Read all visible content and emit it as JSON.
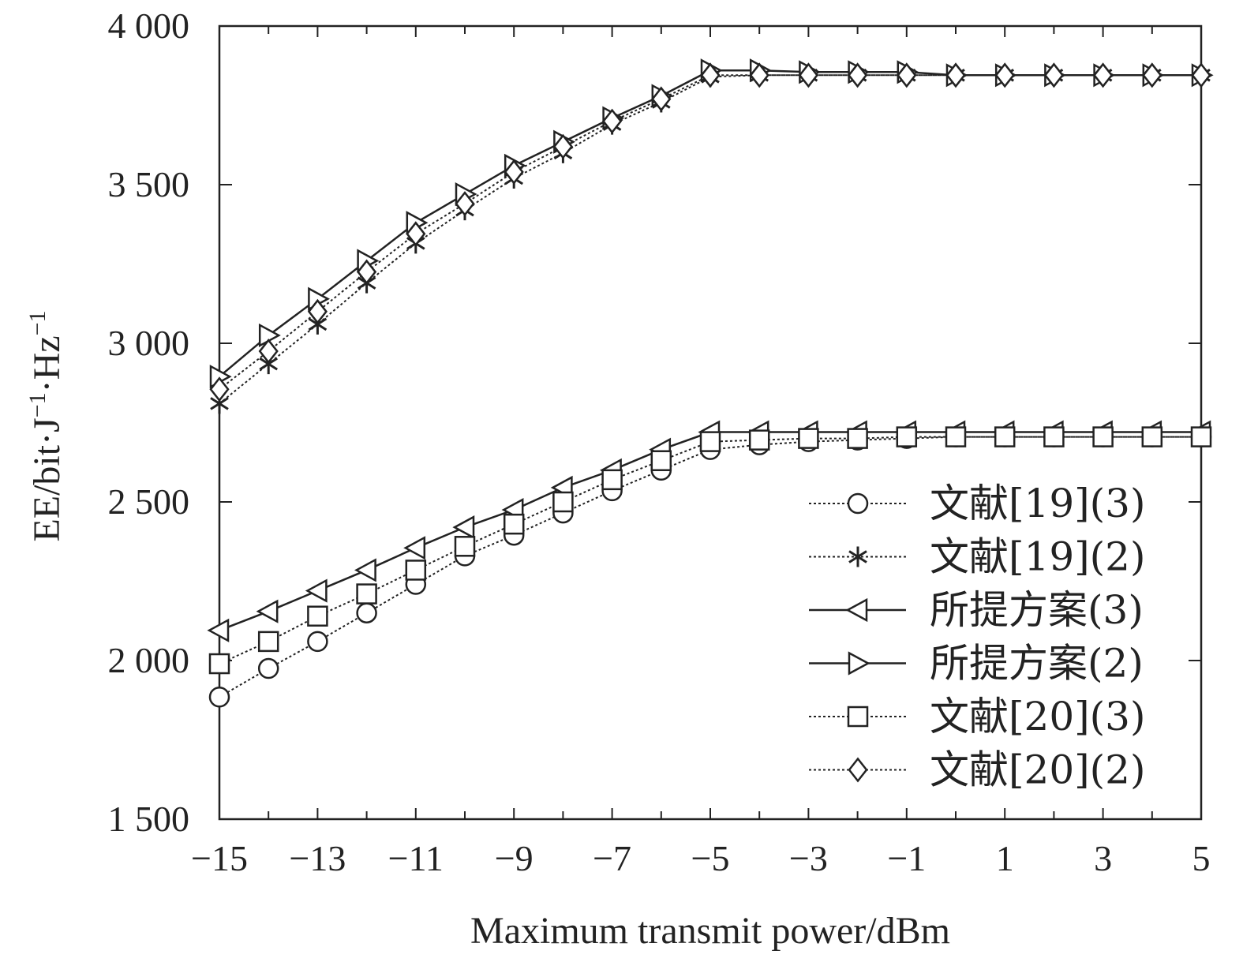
{
  "chart_data": {
    "type": "line",
    "xlabel": "Maximum transmit power/dBm",
    "ylabel_main": "EE/bit·J",
    "ylabel_sup1": "−1",
    "ylabel_mid": "·Hz",
    "ylabel_sup2": "−1",
    "xlim": [
      -15,
      5
    ],
    "ylim": [
      1500,
      4000
    ],
    "xticks": [
      -15,
      -13,
      -11,
      -9,
      -7,
      -5,
      -3,
      -1,
      1,
      3,
      5
    ],
    "xtick_labels": [
      "−15",
      "−13",
      "−11",
      "−9",
      "−7",
      "−5",
      "−3",
      "−1",
      "1",
      "3",
      "5"
    ],
    "yticks": [
      1500,
      2000,
      2500,
      3000,
      3500,
      4000
    ],
    "ytick_labels": [
      "1 500",
      "2 000",
      "2 500",
      "3 000",
      "3 500",
      "4 000"
    ],
    "grid": false,
    "legend_position": "lower-right",
    "x": [
      -15,
      -14,
      -13,
      -12,
      -11,
      -10,
      -9,
      -8,
      -7,
      -6,
      -5,
      -4,
      -3,
      -2,
      -1,
      0,
      1,
      2,
      3,
      4,
      5
    ],
    "series": [
      {
        "name": "文献[19](3)",
        "marker": "circle",
        "line": "dotted",
        "values": [
          1885,
          1975,
          2060,
          2150,
          2240,
          2330,
          2395,
          2465,
          2535,
          2600,
          2665,
          2680,
          2690,
          2695,
          2700,
          2705,
          2705,
          2705,
          2705,
          2705,
          2705
        ]
      },
      {
        "name": "文献[19](2)",
        "marker": "star",
        "line": "dotted",
        "values": [
          2810,
          2935,
          3060,
          3190,
          3315,
          3420,
          3520,
          3600,
          3690,
          3760,
          3840,
          3845,
          3845,
          3845,
          3845,
          3845,
          3845,
          3845,
          3845,
          3845,
          3845
        ]
      },
      {
        "name": "所提方案(3)",
        "marker": "triangle-left",
        "line": "solid",
        "values": [
          2095,
          2155,
          2220,
          2285,
          2355,
          2420,
          2475,
          2545,
          2600,
          2665,
          2720,
          2720,
          2720,
          2720,
          2720,
          2720,
          2720,
          2720,
          2720,
          2720,
          2720
        ]
      },
      {
        "name": "所提方案(2)",
        "marker": "triangle-right",
        "line": "solid",
        "values": [
          2895,
          3025,
          3140,
          3260,
          3380,
          3470,
          3560,
          3635,
          3710,
          3780,
          3860,
          3860,
          3855,
          3855,
          3855,
          3845,
          3845,
          3845,
          3845,
          3845,
          3845
        ]
      },
      {
        "name": "文献[20](3)",
        "marker": "square",
        "line": "dotted",
        "values": [
          1990,
          2060,
          2140,
          2210,
          2285,
          2360,
          2430,
          2500,
          2570,
          2630,
          2690,
          2695,
          2700,
          2700,
          2705,
          2705,
          2705,
          2705,
          2705,
          2705,
          2705
        ]
      },
      {
        "name": "文献[20](2)",
        "marker": "diamond",
        "line": "dotted",
        "values": [
          2855,
          2975,
          3100,
          3225,
          3345,
          3440,
          3540,
          3620,
          3700,
          3770,
          3845,
          3845,
          3845,
          3845,
          3845,
          3845,
          3845,
          3845,
          3845,
          3845,
          3845
        ]
      }
    ]
  }
}
